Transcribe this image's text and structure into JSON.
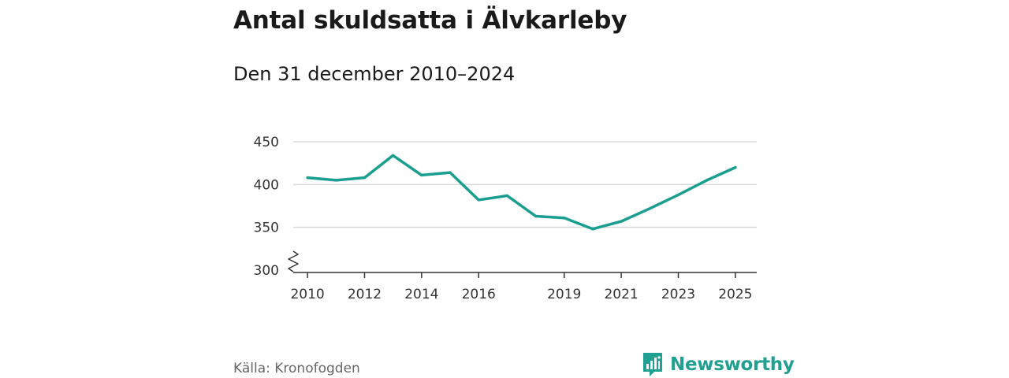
{
  "header": {
    "title": "Antal skuldsatta i Älvkarleby",
    "subtitle": "Den 31 december 2010–2024"
  },
  "footer": {
    "source": "Källa: Kronofogden",
    "brand": "Newsworthy"
  },
  "colors": {
    "line": "#1a9e8f",
    "grid": "#d9d9d9",
    "axis": "#333333",
    "brand": "#20a090"
  },
  "icons": {
    "brand_logo": "bar-chart-badge-icon",
    "axis_break": "zigzag-axis-break-icon"
  },
  "chart_data": {
    "type": "line",
    "title": "Antal skuldsatta i Älvkarleby",
    "xlabel": "",
    "ylabel": "",
    "xlim": [
      2009.5,
      2025.75
    ],
    "ylim": [
      300,
      450
    ],
    "yticks": [
      300,
      350,
      400,
      450
    ],
    "xticks": [
      2010,
      2012,
      2014,
      2016,
      2019,
      2021,
      2023,
      2025
    ],
    "grid": true,
    "axis_break": true,
    "series": [
      {
        "name": "Antal skuldsatta",
        "x": [
          2010,
          2011,
          2012,
          2013,
          2014,
          2015,
          2016,
          2017,
          2018,
          2019,
          2020,
          2021,
          2022,
          2023,
          2024,
          2025
        ],
        "values": [
          408,
          405,
          408,
          434,
          411,
          414,
          382,
          387,
          363,
          361,
          348,
          357,
          372,
          388,
          405,
          420
        ]
      }
    ]
  }
}
